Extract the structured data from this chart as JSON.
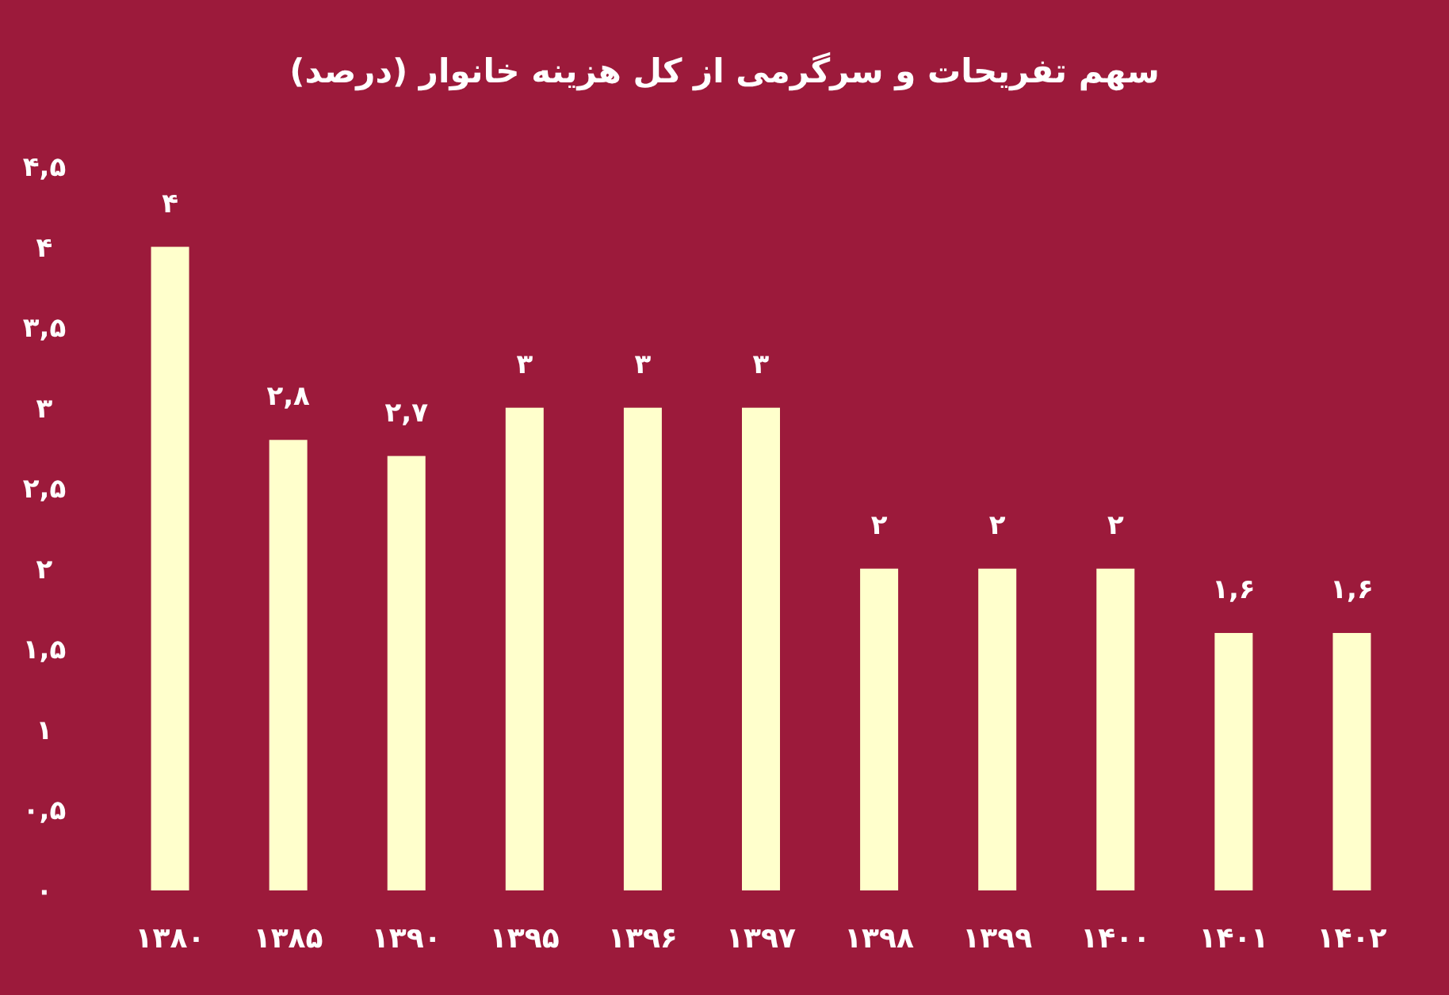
{
  "chart_data": {
    "type": "bar",
    "title": "سهم تفریحات و سرگرمی از کل هزینه خانوار (درصد)",
    "categories": [
      "۱۳۸۰",
      "۱۳۸۵",
      "۱۳۹۰",
      "۱۳۹۵",
      "۱۳۹۶",
      "۱۳۹۷",
      "۱۳۹۸",
      "۱۳۹۹",
      "۱۴۰۰",
      "۱۴۰۱",
      "۱۴۰۲"
    ],
    "values": [
      4,
      2.8,
      2.7,
      3,
      3,
      3,
      2,
      2,
      2,
      1.6,
      1.6
    ],
    "value_labels": [
      "۴",
      "۲,۸",
      "۲,۷",
      "۳",
      "۳",
      "۳",
      "۲",
      "۲",
      "۲",
      "۱,۶",
      "۱,۶"
    ],
    "color": "#ffffcc",
    "ylim": [
      0,
      4.5
    ],
    "yticks": [
      {
        "value": 0,
        "label": "۰"
      },
      {
        "value": 0.5,
        "label": "۰,۵"
      },
      {
        "value": 1,
        "label": "۱"
      },
      {
        "value": 1.5,
        "label": "۱,۵"
      },
      {
        "value": 2,
        "label": "۲"
      },
      {
        "value": 2.5,
        "label": "۲,۵"
      },
      {
        "value": 3,
        "label": "۳"
      },
      {
        "value": 3.5,
        "label": "۳,۵"
      },
      {
        "value": 4,
        "label": "۴"
      },
      {
        "value": 4.5,
        "label": "۴,۵"
      }
    ],
    "grid": false
  }
}
